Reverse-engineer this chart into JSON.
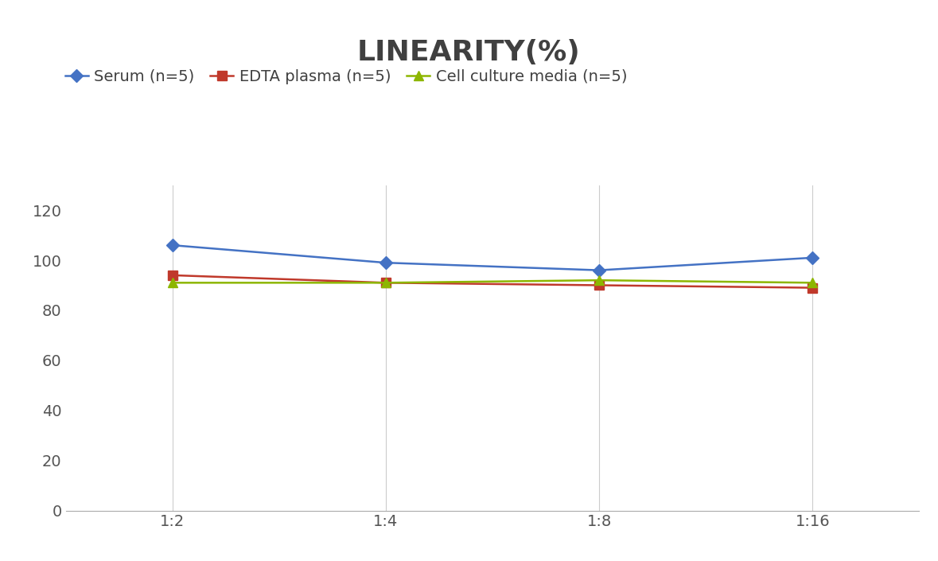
{
  "title": "LINEARITY(%)",
  "x_labels": [
    "1:2",
    "1:4",
    "1:8",
    "1:16"
  ],
  "x_positions": [
    0,
    1,
    2,
    3
  ],
  "series": [
    {
      "name": "Serum (n=5)",
      "values": [
        106,
        99,
        96,
        101
      ],
      "color": "#4472C4",
      "marker": "D",
      "linewidth": 1.8
    },
    {
      "name": "EDTA plasma (n=5)",
      "values": [
        94,
        91,
        90,
        89
      ],
      "color": "#C0392B",
      "marker": "s",
      "linewidth": 1.8
    },
    {
      "name": "Cell culture media (n=5)",
      "values": [
        91,
        91,
        92,
        91
      ],
      "color": "#8DB600",
      "marker": "^",
      "linewidth": 1.8
    }
  ],
  "ylim": [
    0,
    130
  ],
  "yticks": [
    0,
    20,
    40,
    60,
    80,
    100,
    120
  ],
  "background_color": "#ffffff",
  "title_fontsize": 26,
  "tick_fontsize": 14,
  "legend_fontsize": 14,
  "title_color": "#404040"
}
